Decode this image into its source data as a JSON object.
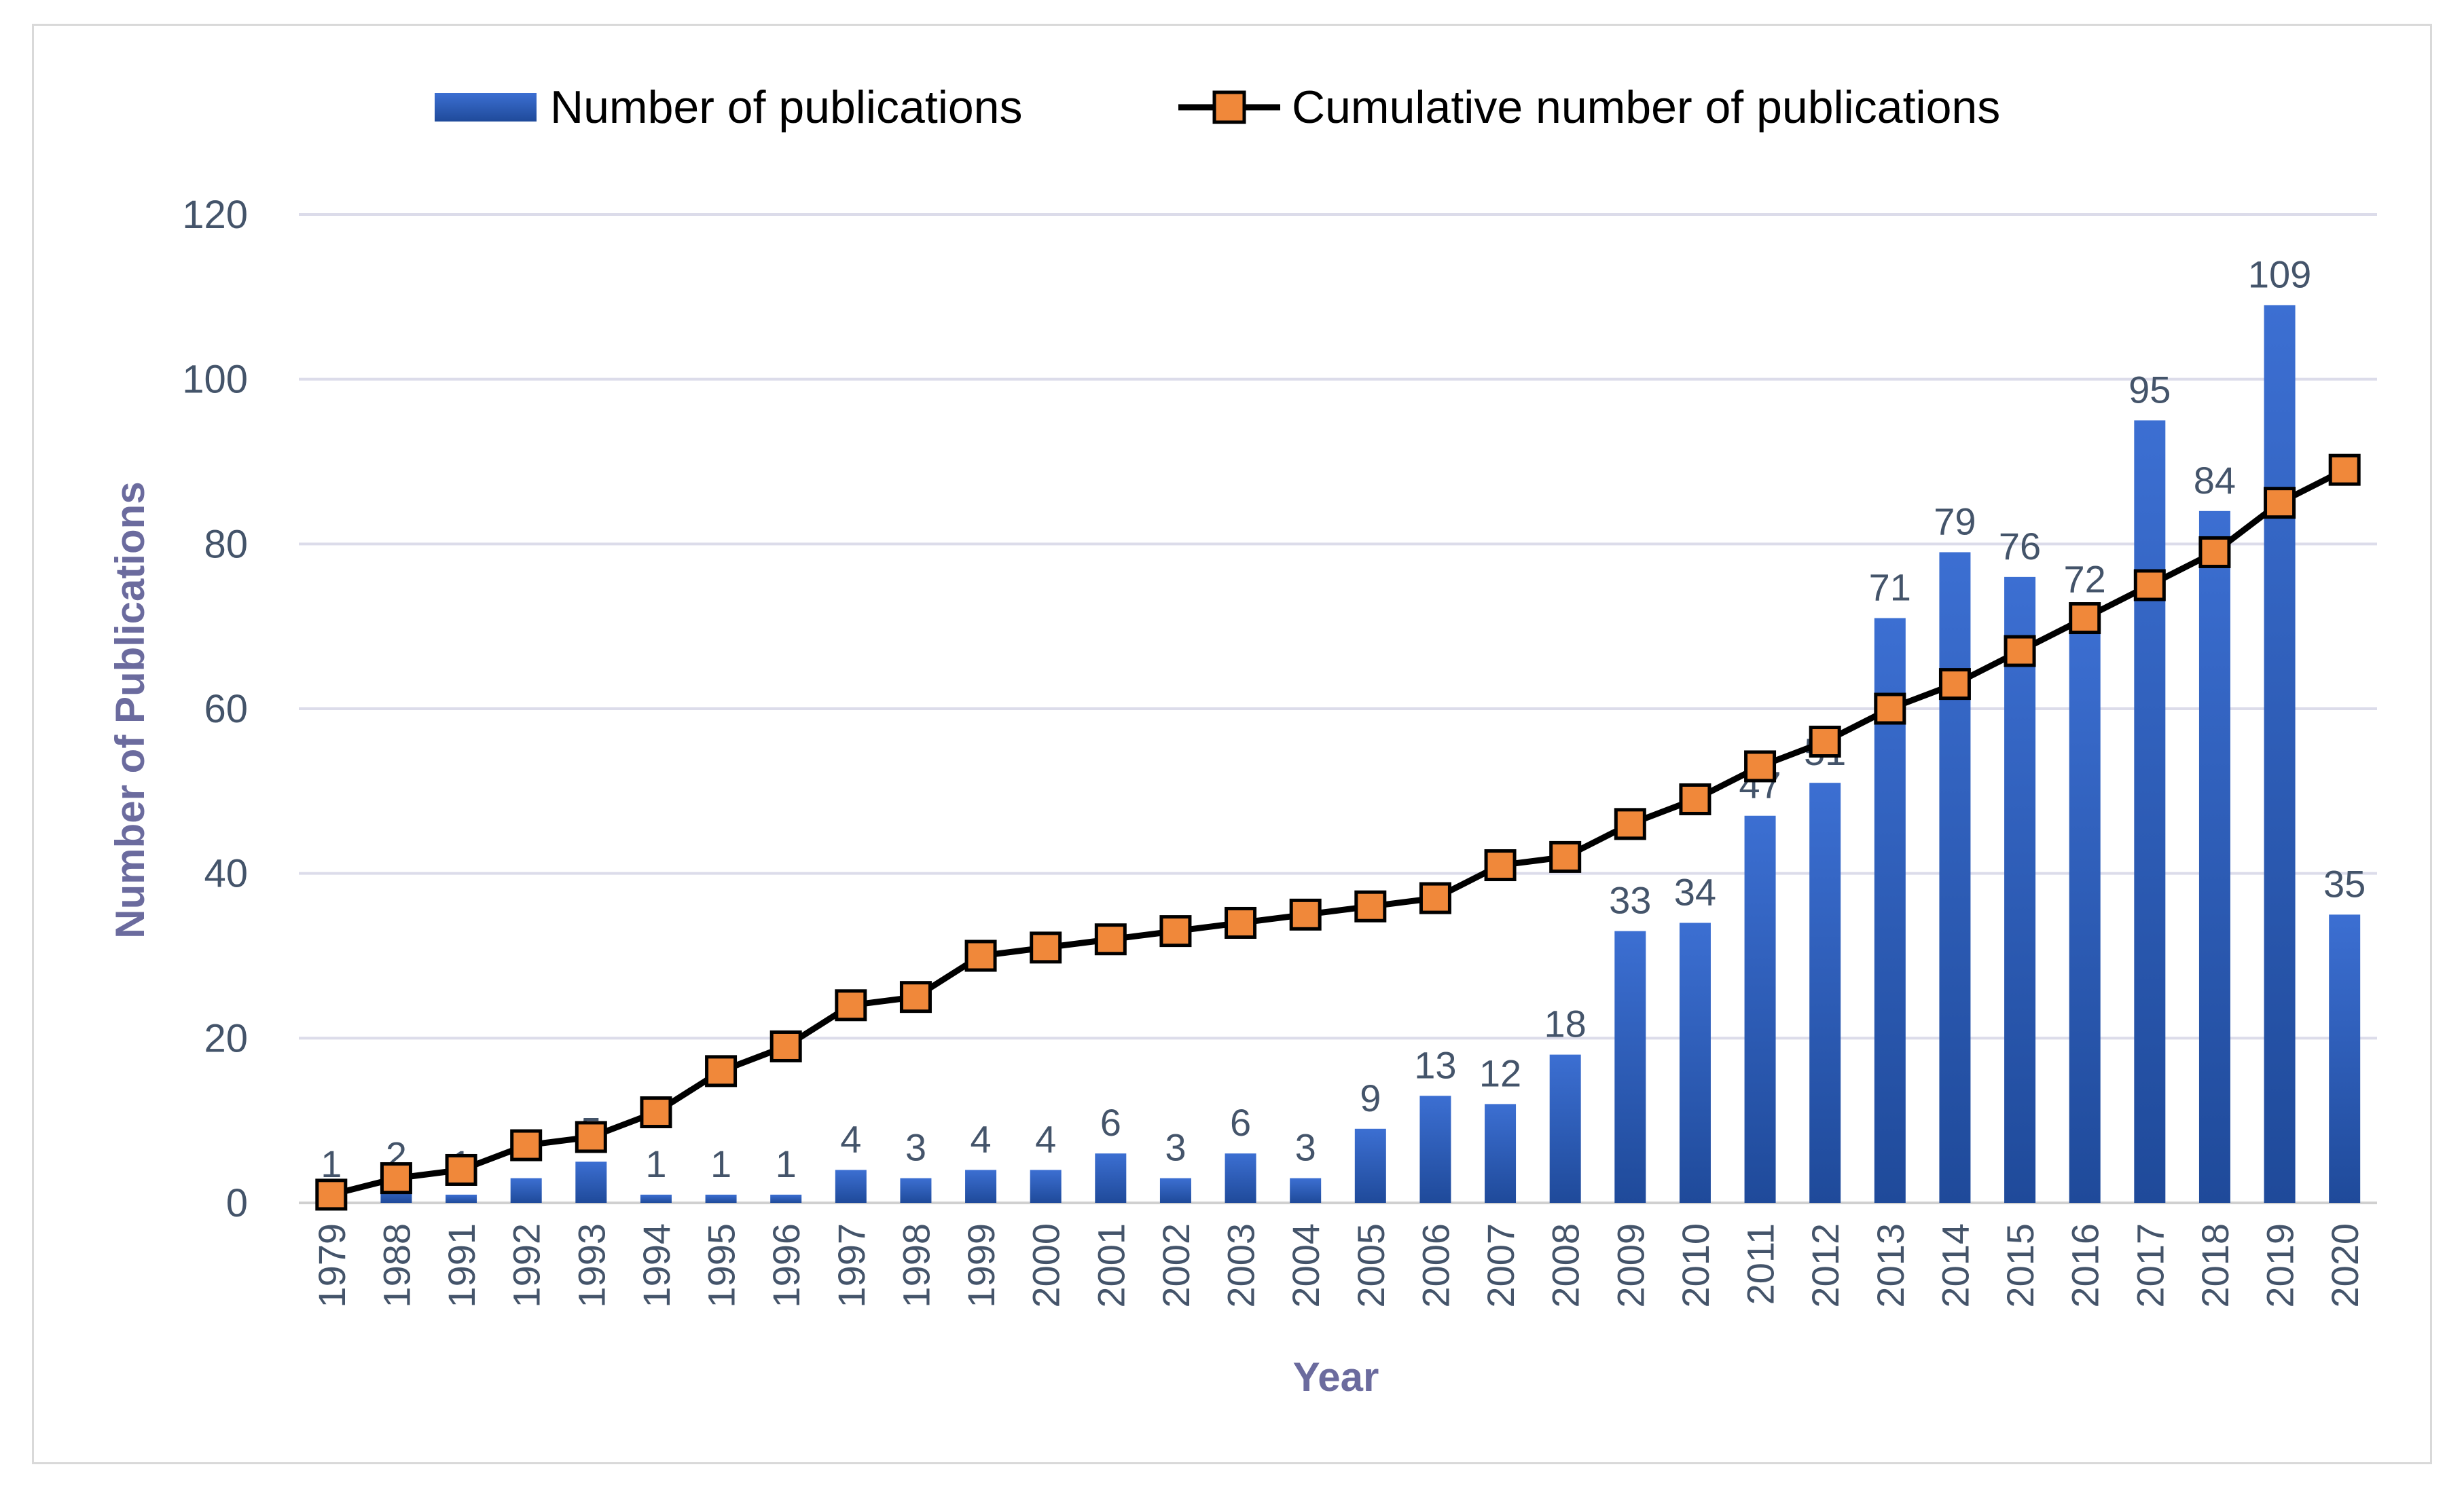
{
  "chart_data": {
    "type": "bar",
    "categories": [
      "1979",
      "1988",
      "1991",
      "1992",
      "1993",
      "1994",
      "1995",
      "1996",
      "1997",
      "1998",
      "1999",
      "2000",
      "2001",
      "2002",
      "2003",
      "2004",
      "2005",
      "2006",
      "2007",
      "2008",
      "2009",
      "2010",
      "2011",
      "2012",
      "2013",
      "2014",
      "2015",
      "2016",
      "2017",
      "2018",
      "2019",
      "2020"
    ],
    "series": [
      {
        "name": "Number of publications",
        "type": "bar",
        "color": "#2e5ab8",
        "values": [
          1,
          2,
          1,
          3,
          5,
          1,
          1,
          1,
          4,
          3,
          4,
          4,
          6,
          3,
          6,
          3,
          9,
          13,
          12,
          18,
          33,
          34,
          47,
          51,
          71,
          79,
          76,
          72,
          95,
          84,
          109,
          35
        ]
      },
      {
        "name": "Cumulative number of publications",
        "type": "line",
        "line_color": "#000000",
        "marker_color": "#f0883a",
        "values": [
          1,
          3,
          4,
          7,
          8,
          11,
          16,
          19,
          24,
          25,
          30,
          31,
          32,
          33,
          34,
          35,
          36,
          37,
          41,
          42,
          46,
          49,
          53,
          56,
          60,
          63,
          67,
          71,
          75,
          79,
          85,
          89
        ]
      }
    ],
    "title": "",
    "xlabel": "Year",
    "ylabel": "Number of Publications",
    "ylim": [
      0,
      120
    ],
    "yticks": [
      "0",
      "20",
      "40",
      "60",
      "80",
      "100",
      "120"
    ],
    "grid": true,
    "legend": "top-center"
  }
}
